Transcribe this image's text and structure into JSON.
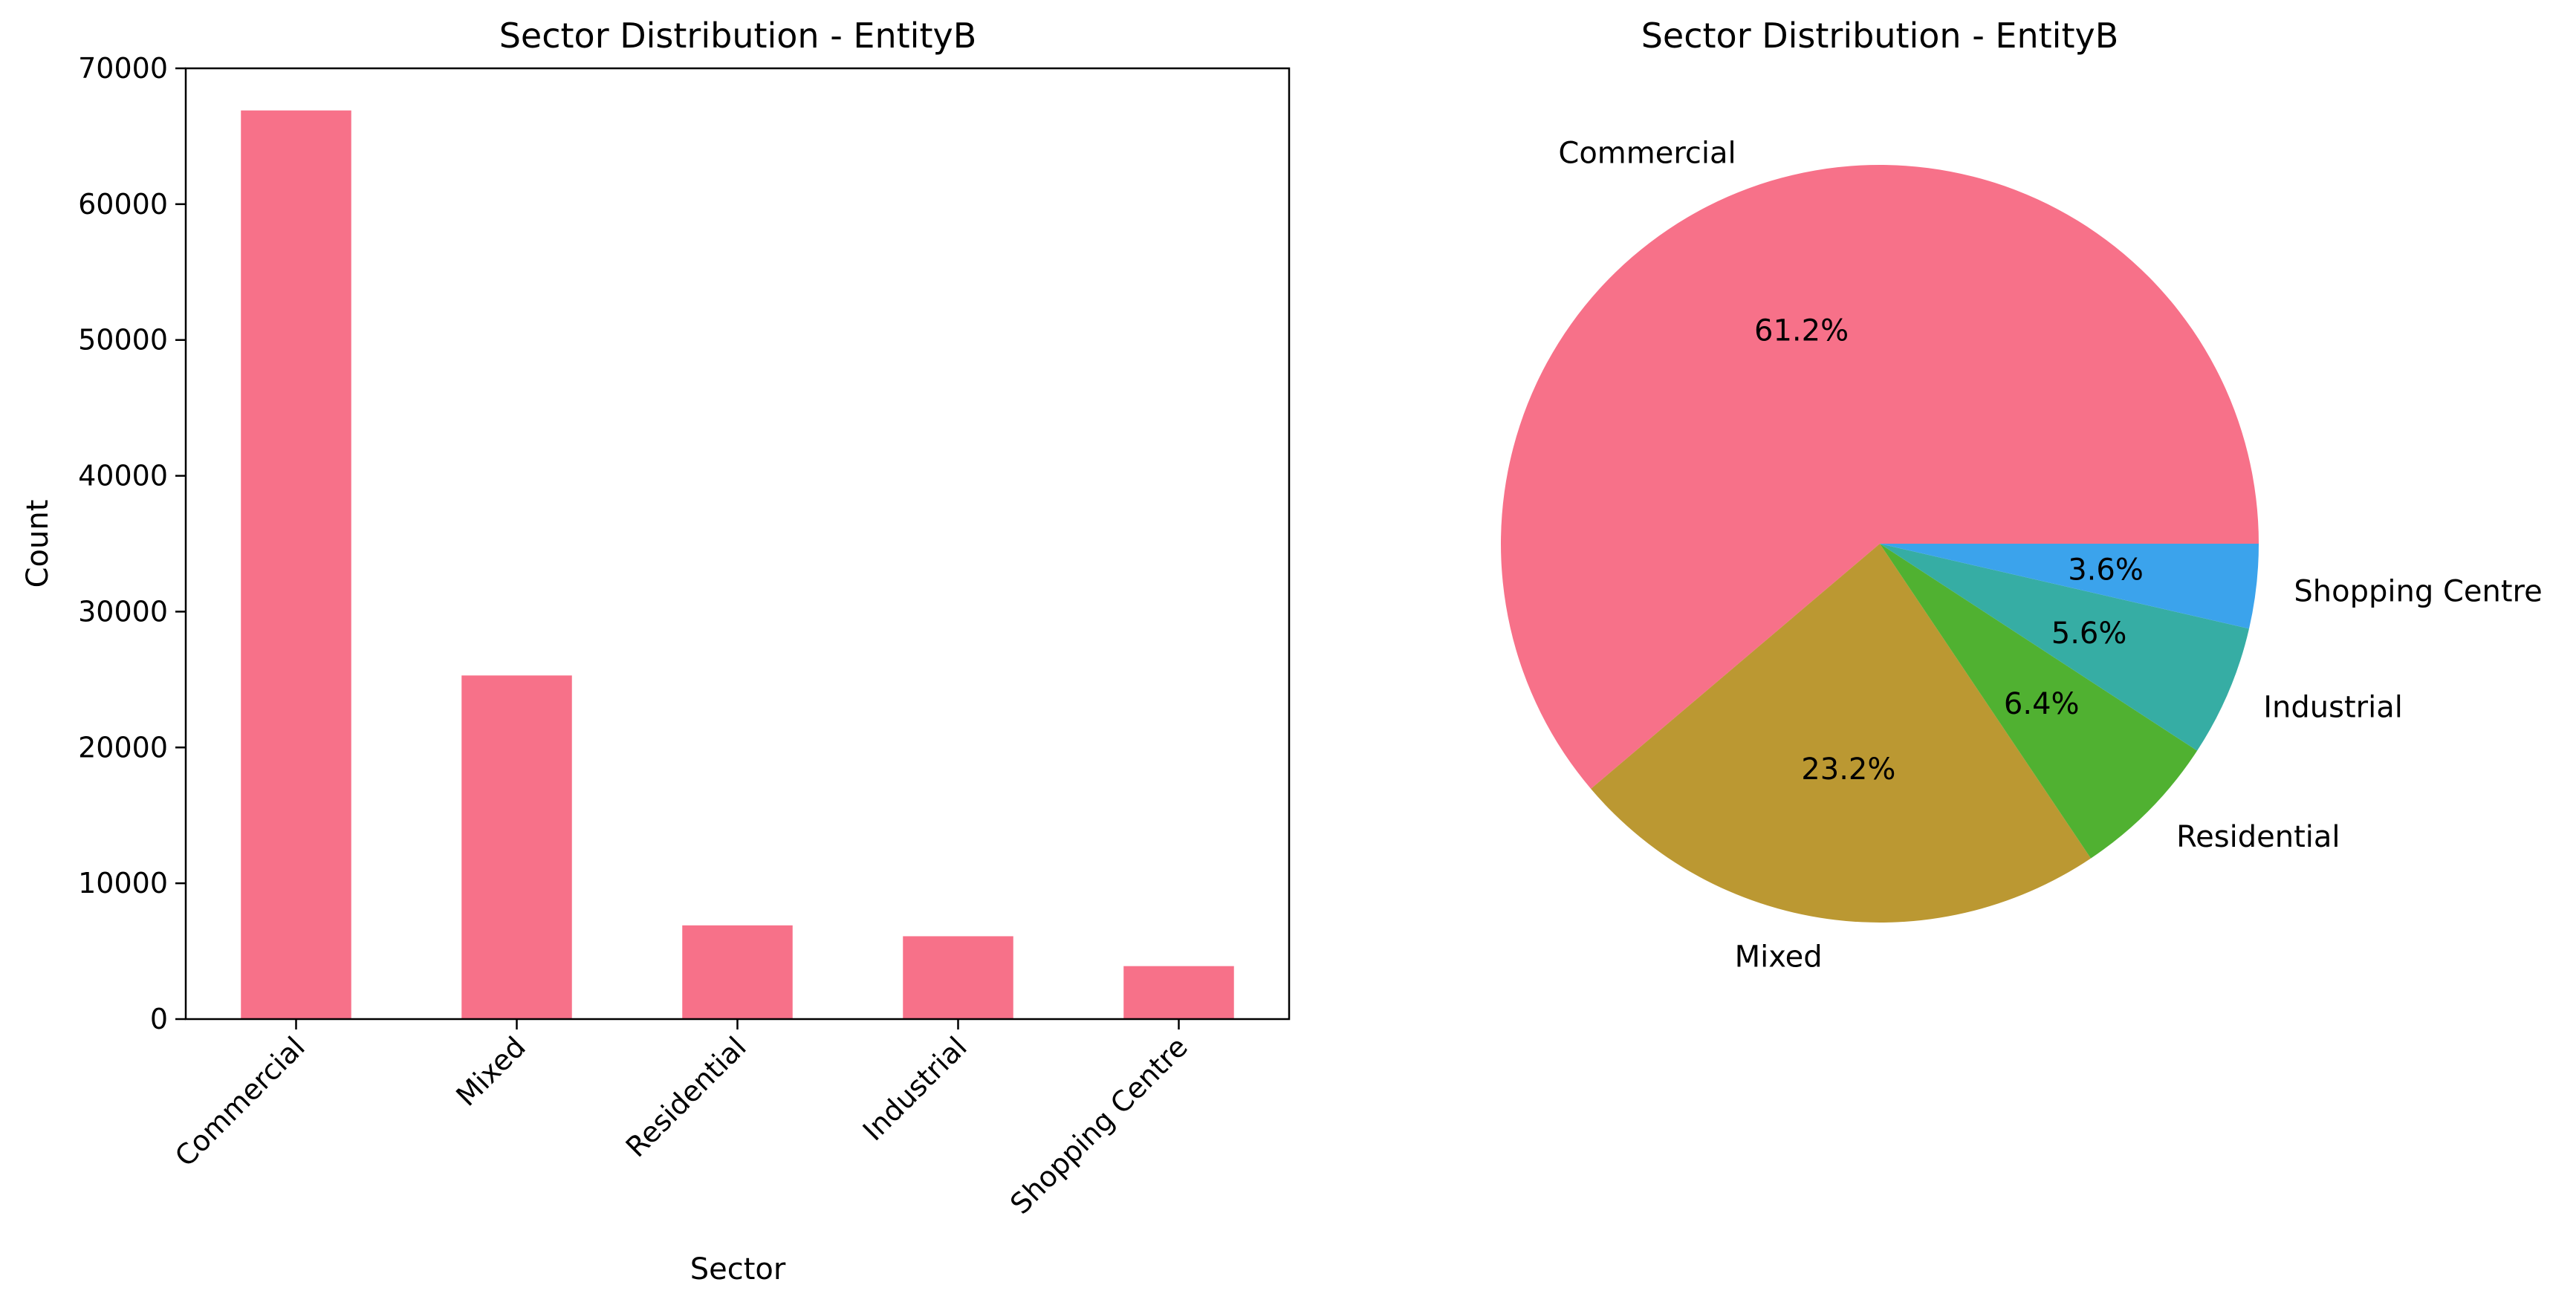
{
  "chart_data": [
    {
      "type": "bar",
      "title": "Sector Distribution - EntityB",
      "xlabel": "Sector",
      "ylabel": "Count",
      "categories": [
        "Commercial",
        "Mixed",
        "Residential",
        "Industrial",
        "Shopping Centre"
      ],
      "values": [
        66900,
        25300,
        6900,
        6100,
        3900
      ],
      "ylim": [
        0,
        70000
      ],
      "yticks": [
        "0",
        "10000",
        "20000",
        "30000",
        "40000",
        "50000",
        "60000",
        "70000"
      ],
      "grid": false,
      "color": "#f77189"
    },
    {
      "type": "pie",
      "title": "Sector Distribution - EntityB",
      "labels": [
        "Commercial",
        "Mixed",
        "Residential",
        "Industrial",
        "Shopping Centre"
      ],
      "values": [
        61.2,
        23.2,
        6.4,
        5.6,
        3.6
      ],
      "pct_labels": [
        "61.2%",
        "23.2%",
        "6.4%",
        "5.6%",
        "3.6%"
      ],
      "colors": [
        "#f77189",
        "#bb9832",
        "#50b131",
        "#36ada4",
        "#3ba3ec"
      ]
    }
  ]
}
